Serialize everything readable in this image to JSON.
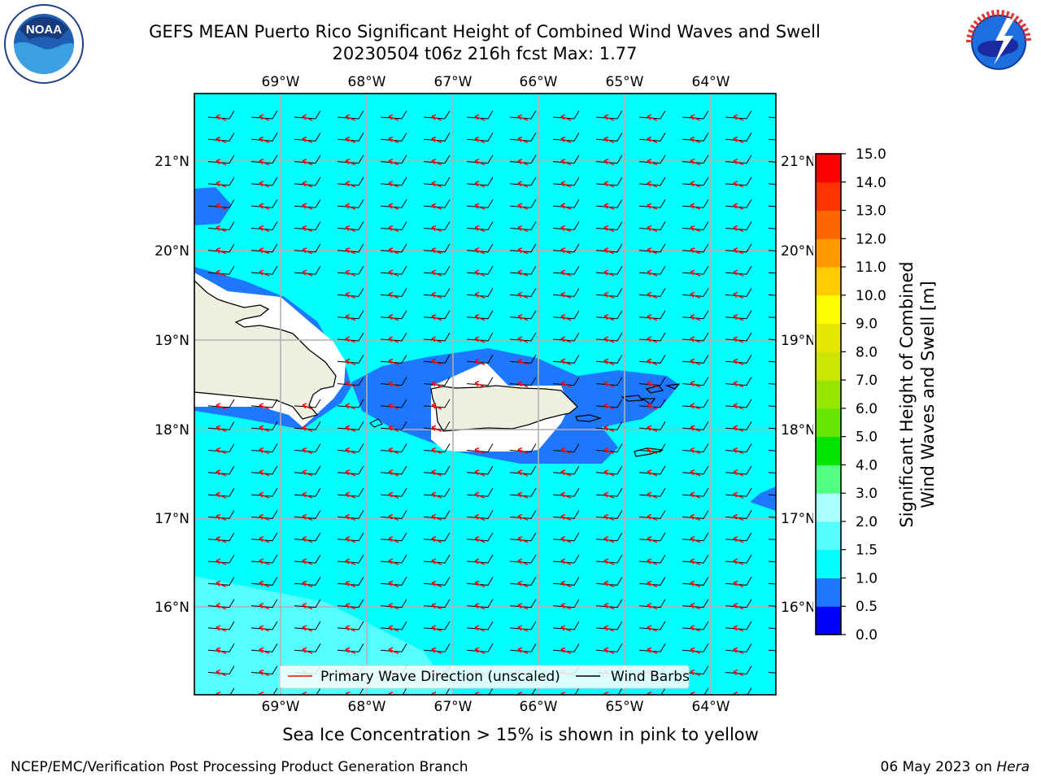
{
  "header": {
    "title_line1": "GEFS MEAN Puerto Rico Significant Height of Combined Wind Waves and Swell",
    "title_line2": "20230504 t06z 216h fcst   Max: 1.77"
  },
  "logos": {
    "left": "NOAA",
    "left_ring": "NATIONAL OCEANIC AND ATMOSPHERIC ADMINISTRATION · U.S. DEPARTMENT OF COMMERCE",
    "right_ring": "NATIONAL WEATHER SERVICE"
  },
  "map": {
    "lon_labels": [
      "69°W",
      "68°W",
      "67°W",
      "66°W",
      "65°W",
      "64°W"
    ],
    "lat_labels": [
      "21°N",
      "20°N",
      "19°N",
      "18°N",
      "17°N",
      "16°N"
    ],
    "lon_range": [
      -70.0,
      -63.25
    ],
    "lat_range": [
      15.0,
      21.75
    ],
    "legend": {
      "wave_direction": "Primary Wave Direction (unscaled)",
      "wind_barbs": "Wind Barbs"
    }
  },
  "colorbar": {
    "title_line1": "Significant Height of Combined",
    "title_line2": "Wind Waves and Swell [m]",
    "ticks": [
      "0.0",
      "0.5",
      "1.0",
      "1.5",
      "2.0",
      "3.0",
      "4.0",
      "5.0",
      "6.0",
      "7.0",
      "8.0",
      "9.0",
      "10.0",
      "11.0",
      "12.0",
      "13.0",
      "14.0",
      "15.0"
    ],
    "colors": [
      "#0000ff",
      "#1e78ff",
      "#00ffff",
      "#55ffff",
      "#aaffff",
      "#55ff7f",
      "#00e400",
      "#66e600",
      "#99e600",
      "#cce600",
      "#e6e600",
      "#ffff00",
      "#ffcc00",
      "#ff9900",
      "#ff6600",
      "#ff3300",
      "#ff0000"
    ]
  },
  "chart_data": {
    "type": "heatmap",
    "title": "GEFS MEAN Puerto Rico Significant Height of Combined Wind Waves and Swell",
    "subtitle": "20230504 t06z 216h fcst   Max: 1.77",
    "max": 1.77,
    "units": "m",
    "field_description": "Most of the sea at 1.0-1.5 m; 0.5-1.0 m near coasts of Hispaniola, Puerto Rico and Virgin Islands and in NW corner; 1.5-2.0 m in SW corner"
  },
  "footer": {
    "ice_note": "Sea Ice Concentration > 15% is shown in pink to yellow",
    "left": "NCEP/EMC/Verification Post Processing Product Generation Branch",
    "right_date": "06 May 2023 on",
    "right_host": "Hera"
  }
}
